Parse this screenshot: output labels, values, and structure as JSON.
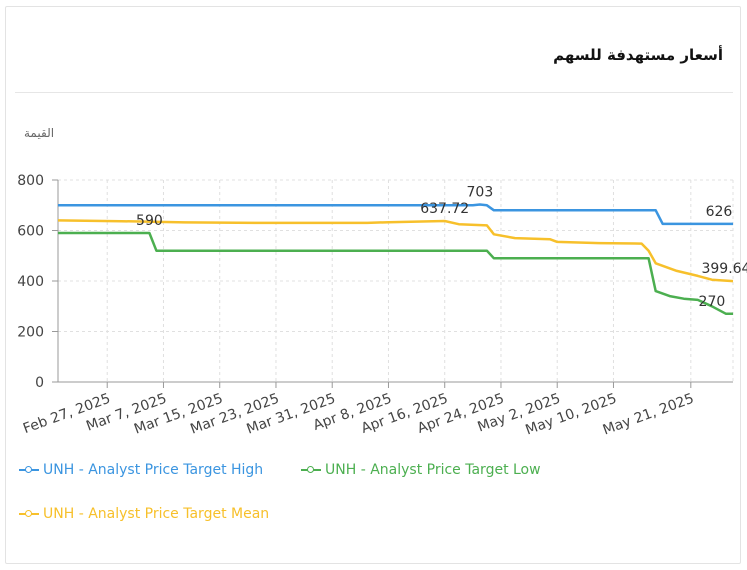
{
  "header": {
    "title": "أسعار مستهدفة للسهم"
  },
  "chart_data": {
    "type": "line",
    "title": "أسعار مستهدفة للسهم",
    "ylabel": "القيمة",
    "xlabel": "",
    "ylim": [
      0,
      800
    ],
    "yticks": [
      0,
      200,
      400,
      600,
      800
    ],
    "xrange": [
      "2025-02-20",
      "2025-05-27"
    ],
    "x_tick_labels": [
      {
        "date": "2025-02-27",
        "label": "Feb 27, 2025"
      },
      {
        "date": "2025-03-07",
        "label": "Mar 7, 2025"
      },
      {
        "date": "2025-03-15",
        "label": "Mar 15, 2025"
      },
      {
        "date": "2025-03-23",
        "label": "Mar 23, 2025"
      },
      {
        "date": "2025-03-31",
        "label": "Mar 31, 2025"
      },
      {
        "date": "2025-04-08",
        "label": "Apr 8, 2025"
      },
      {
        "date": "2025-04-16",
        "label": "Apr 16, 2025"
      },
      {
        "date": "2025-04-24",
        "label": "Apr 24, 2025"
      },
      {
        "date": "2025-05-02",
        "label": "May 2, 2025"
      },
      {
        "date": "2025-05-10",
        "label": "May 10, 2025"
      },
      {
        "date": "2025-05-21",
        "label": "May 21, 2025"
      }
    ],
    "grid": true,
    "legend_position": "bottom",
    "series": [
      {
        "name": "UNH - Analyst Price Target High",
        "color": "#3b95e0",
        "points": [
          [
            "2025-02-20",
            700
          ],
          [
            "2025-04-20",
            700
          ],
          [
            "2025-04-21",
            703
          ],
          [
            "2025-04-22",
            700
          ],
          [
            "2025-04-23",
            680
          ],
          [
            "2025-05-13",
            680
          ],
          [
            "2025-05-16",
            680
          ],
          [
            "2025-05-17",
            626
          ],
          [
            "2025-05-27",
            626
          ]
        ]
      },
      {
        "name": "UNH - Analyst Price Target Low",
        "color": "#4caf50",
        "points": [
          [
            "2025-02-20",
            590
          ],
          [
            "2025-03-05",
            590
          ],
          [
            "2025-03-06",
            520
          ],
          [
            "2025-04-22",
            520
          ],
          [
            "2025-04-23",
            490
          ],
          [
            "2025-05-15",
            490
          ],
          [
            "2025-05-16",
            360
          ],
          [
            "2025-05-18",
            340
          ],
          [
            "2025-05-20",
            330
          ],
          [
            "2025-05-22",
            325
          ],
          [
            "2025-05-24",
            300
          ],
          [
            "2025-05-26",
            270
          ],
          [
            "2025-05-27",
            270
          ]
        ]
      },
      {
        "name": "UNH - Analyst Price Target Mean",
        "color": "#f7c02b",
        "points": [
          [
            "2025-02-20",
            640
          ],
          [
            "2025-03-01",
            637
          ],
          [
            "2025-03-10",
            632
          ],
          [
            "2025-03-20",
            630
          ],
          [
            "2025-04-05",
            630
          ],
          [
            "2025-04-08",
            633
          ],
          [
            "2025-04-16",
            637.72
          ],
          [
            "2025-04-18",
            625
          ],
          [
            "2025-04-22",
            620
          ],
          [
            "2025-04-23",
            585
          ],
          [
            "2025-04-26",
            570
          ],
          [
            "2025-05-01",
            565
          ],
          [
            "2025-05-02",
            555
          ],
          [
            "2025-05-08",
            550
          ],
          [
            "2025-05-14",
            548
          ],
          [
            "2025-05-15",
            520
          ],
          [
            "2025-05-16",
            470
          ],
          [
            "2025-05-19",
            440
          ],
          [
            "2025-05-22",
            420
          ],
          [
            "2025-05-24",
            405
          ],
          [
            "2025-05-27",
            399.64
          ]
        ]
      }
    ],
    "annotations": [
      {
        "series": 0,
        "date": "2025-04-21",
        "value": 703,
        "label": "703"
      },
      {
        "series": 0,
        "date": "2025-05-25",
        "value": 626,
        "label": "626"
      },
      {
        "series": 1,
        "date": "2025-03-05",
        "value": 590,
        "label": "590"
      },
      {
        "series": 1,
        "date": "2025-05-24",
        "value": 270,
        "label": "270"
      },
      {
        "series": 2,
        "date": "2025-04-16",
        "value": 637.72,
        "label": "637.72"
      },
      {
        "series": 2,
        "date": "2025-05-26",
        "value": 399.64,
        "label": "399.64"
      }
    ]
  }
}
